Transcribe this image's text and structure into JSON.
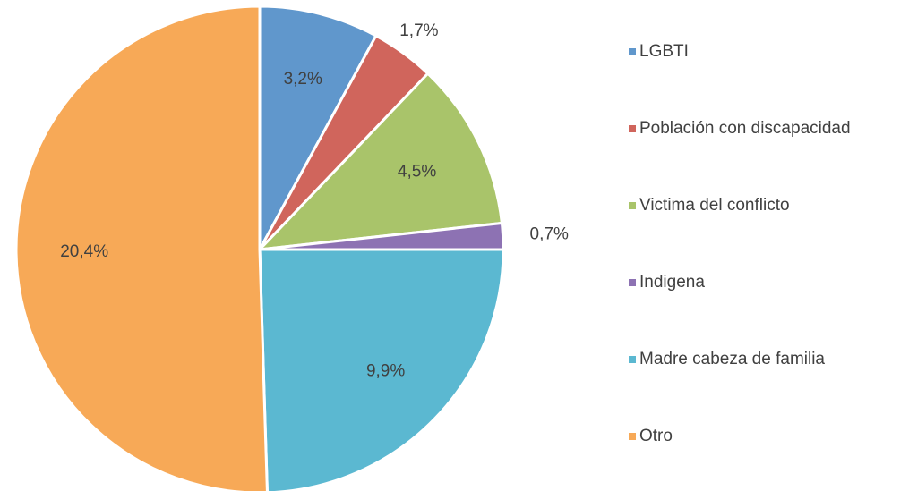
{
  "chart_data": {
    "type": "pie",
    "categories": [
      "LGBTI",
      "Población con discapacidad",
      "Victima del conflicto",
      "Indigena",
      "Madre cabeza de familia",
      "Otro"
    ],
    "values": [
      3.2,
      1.7,
      4.5,
      0.7,
      9.9,
      20.4
    ],
    "value_labels": [
      "3,2%",
      "1,7%",
      "4,5%",
      "0,7%",
      "9,9%",
      "20,4%"
    ],
    "colors": [
      "#6097cc",
      "#d0655c",
      "#a9c46a",
      "#8d72b3",
      "#5bb8d1",
      "#f7a957"
    ],
    "legend": "right"
  }
}
